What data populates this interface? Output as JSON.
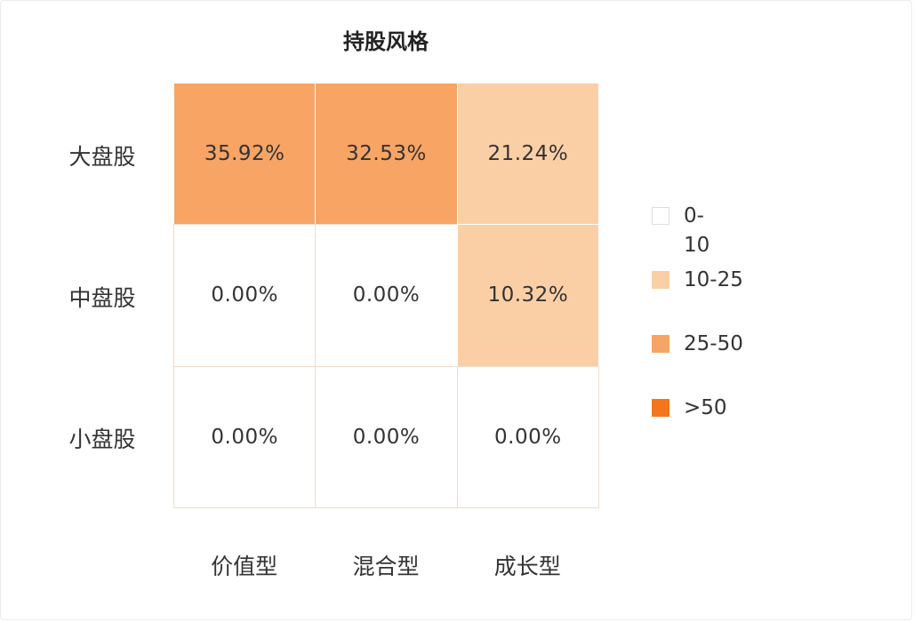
{
  "chart_data": {
    "type": "heatmap",
    "title": "持股风格",
    "rows": [
      "大盘股",
      "中盘股",
      "小盘股"
    ],
    "columns": [
      "价值型",
      "混合型",
      "成长型"
    ],
    "values": [
      [
        35.92,
        32.53,
        21.24
      ],
      [
        0.0,
        0.0,
        10.32
      ],
      [
        0.0,
        0.0,
        0.0
      ]
    ],
    "labels": [
      [
        "35.92%",
        "32.53%",
        "21.24%"
      ],
      [
        "0.00%",
        "0.00%",
        "10.32%"
      ],
      [
        "0.00%",
        "0.00%",
        "0.00%"
      ]
    ],
    "legend_position": "right",
    "legend": [
      {
        "label": "0-\n10",
        "min": 0,
        "max": 10,
        "color": "#ffffff"
      },
      {
        "label": "10-25",
        "min": 10,
        "max": 25,
        "color": "#fbcfa5"
      },
      {
        "label": "25-50",
        "min": 25,
        "max": 50,
        "color": "#f7a465"
      },
      {
        "label": ">50",
        "min": 50,
        "max": null,
        "color": "#f3761c"
      }
    ],
    "cell_border_color": "#f2dcc8"
  }
}
